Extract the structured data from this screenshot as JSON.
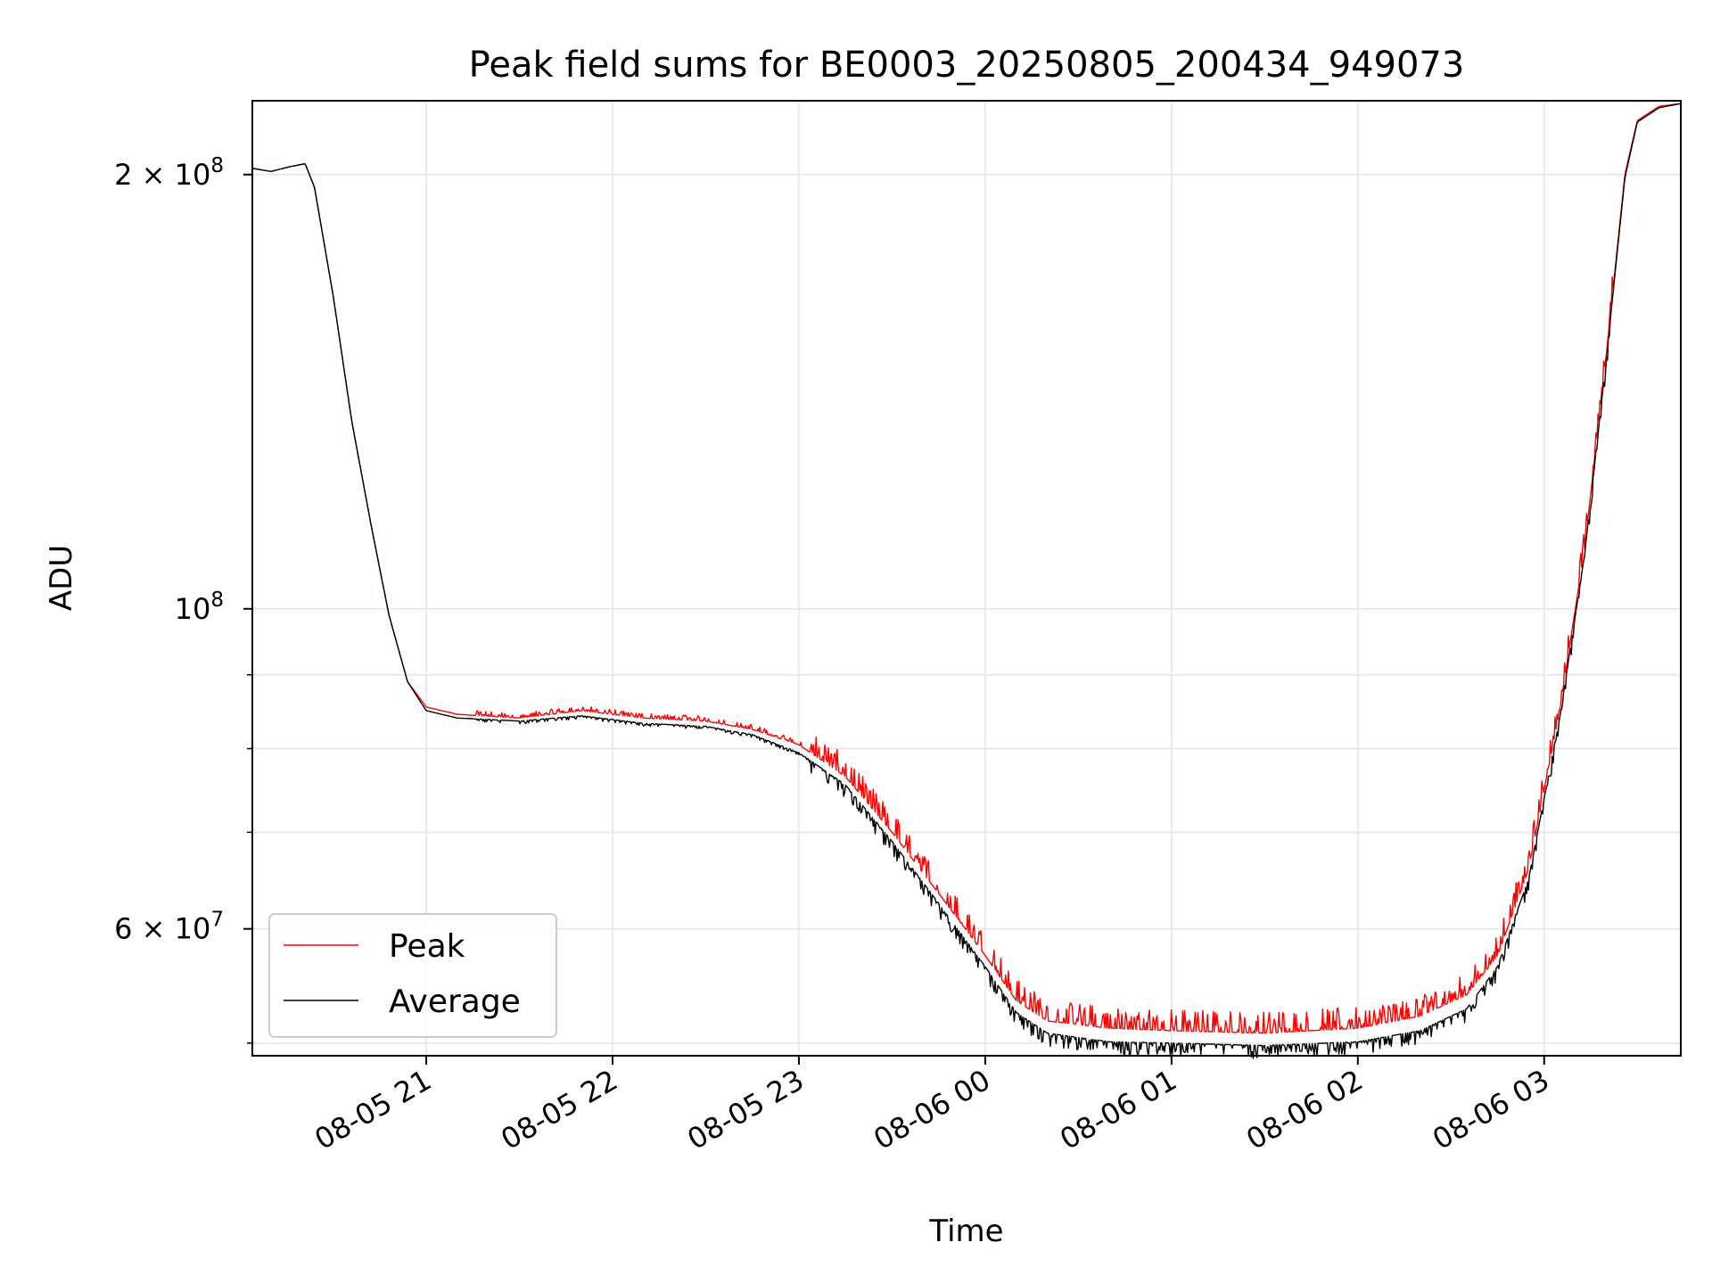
{
  "chart_data": {
    "type": "line",
    "title": "Peak field sums for BE0003_20250805_200434_949073",
    "xlabel": "Time",
    "ylabel": "ADU",
    "yscale": "log",
    "ylim": [
      49000000,
      225000000
    ],
    "xlim": [
      "2025-08-05 20:04",
      "2025-08-06 03:44"
    ],
    "grid": true,
    "legend_position": "lower-left",
    "x_ticks": [
      {
        "t": "2025-08-05 21:00",
        "label": "08-05 21"
      },
      {
        "t": "2025-08-05 22:00",
        "label": "08-05 22"
      },
      {
        "t": "2025-08-05 23:00",
        "label": "08-05 23"
      },
      {
        "t": "2025-08-06 00:00",
        "label": "08-06 00"
      },
      {
        "t": "2025-08-06 01:00",
        "label": "08-06 01"
      },
      {
        "t": "2025-08-06 02:00",
        "label": "08-06 02"
      },
      {
        "t": "2025-08-06 03:00",
        "label": "08-06 03"
      }
    ],
    "y_ticks": [
      {
        "value": 200000000,
        "base": "2 × 10",
        "exp": "8"
      },
      {
        "value": 100000000,
        "base": "10",
        "exp": "8"
      },
      {
        "value": 60000000,
        "base": "6 × 10",
        "exp": "7"
      }
    ],
    "y_minor_ticks": [
      50000000,
      70000000,
      80000000,
      90000000
    ],
    "series": [
      {
        "name": "Peak",
        "color": "#ff0000",
        "noise": "spikes",
        "points": [
          [
            "2025-08-05 20:04",
            202000000
          ],
          [
            "2025-08-05 20:10",
            201000000
          ],
          [
            "2025-08-05 20:16",
            202500000
          ],
          [
            "2025-08-05 20:21",
            203500000
          ],
          [
            "2025-08-05 20:24",
            196000000
          ],
          [
            "2025-08-05 20:30",
            165000000
          ],
          [
            "2025-08-05 20:36",
            135000000
          ],
          [
            "2025-08-05 20:42",
            115000000
          ],
          [
            "2025-08-05 20:48",
            99000000
          ],
          [
            "2025-08-05 20:54",
            89000000
          ],
          [
            "2025-08-05 21:00",
            85500000
          ],
          [
            "2025-08-05 21:10",
            84500000
          ],
          [
            "2025-08-05 21:30",
            84000000
          ],
          [
            "2025-08-05 21:50",
            85000000
          ],
          [
            "2025-08-05 22:10",
            84000000
          ],
          [
            "2025-08-05 22:30",
            83600000
          ],
          [
            "2025-08-05 22:45",
            82500000
          ],
          [
            "2025-08-05 23:00",
            80500000
          ],
          [
            "2025-08-05 23:15",
            76500000
          ],
          [
            "2025-08-05 23:30",
            70000000
          ],
          [
            "2025-08-05 23:45",
            63500000
          ],
          [
            "2025-08-06 00:00",
            57500000
          ],
          [
            "2025-08-06 00:10",
            53500000
          ],
          [
            "2025-08-06 00:20",
            51800000
          ],
          [
            "2025-08-06 00:40",
            51200000
          ],
          [
            "2025-08-06 01:00",
            51000000
          ],
          [
            "2025-08-06 01:30",
            50800000
          ],
          [
            "2025-08-06 02:00",
            51200000
          ],
          [
            "2025-08-06 02:20",
            52200000
          ],
          [
            "2025-08-06 02:35",
            54000000
          ],
          [
            "2025-08-06 02:45",
            57500000
          ],
          [
            "2025-08-06 02:55",
            66000000
          ],
          [
            "2025-08-06 03:05",
            85000000
          ],
          [
            "2025-08-06 03:13",
            110000000
          ],
          [
            "2025-08-06 03:20",
            150000000
          ],
          [
            "2025-08-06 03:26",
            200000000
          ],
          [
            "2025-08-06 03:30",
            218000000
          ],
          [
            "2025-08-06 03:37",
            223000000
          ],
          [
            "2025-08-06 03:44",
            224000000
          ]
        ]
      },
      {
        "name": "Average",
        "color": "#000000",
        "noise": "dips",
        "points": [
          [
            "2025-08-05 20:04",
            202000000
          ],
          [
            "2025-08-05 20:10",
            201000000
          ],
          [
            "2025-08-05 20:16",
            202500000
          ],
          [
            "2025-08-05 20:21",
            203500000
          ],
          [
            "2025-08-05 20:24",
            196000000
          ],
          [
            "2025-08-05 20:30",
            165000000
          ],
          [
            "2025-08-05 20:36",
            135000000
          ],
          [
            "2025-08-05 20:42",
            115000000
          ],
          [
            "2025-08-05 20:48",
            99000000
          ],
          [
            "2025-08-05 20:54",
            89000000
          ],
          [
            "2025-08-05 21:00",
            85000000
          ],
          [
            "2025-08-05 21:10",
            84000000
          ],
          [
            "2025-08-05 21:30",
            83600000
          ],
          [
            "2025-08-05 21:50",
            84300000
          ],
          [
            "2025-08-05 22:10",
            83300000
          ],
          [
            "2025-08-05 22:30",
            82900000
          ],
          [
            "2025-08-05 22:45",
            81800000
          ],
          [
            "2025-08-05 23:00",
            79500000
          ],
          [
            "2025-08-05 23:15",
            75500000
          ],
          [
            "2025-08-05 23:30",
            69000000
          ],
          [
            "2025-08-05 23:45",
            62500000
          ],
          [
            "2025-08-06 00:00",
            56500000
          ],
          [
            "2025-08-06 00:10",
            52500000
          ],
          [
            "2025-08-06 00:20",
            50800000
          ],
          [
            "2025-08-06 00:40",
            50100000
          ],
          [
            "2025-08-06 01:00",
            50000000
          ],
          [
            "2025-08-06 01:30",
            49800000
          ],
          [
            "2025-08-06 02:00",
            50100000
          ],
          [
            "2025-08-06 02:20",
            51000000
          ],
          [
            "2025-08-06 02:35",
            52800000
          ],
          [
            "2025-08-06 02:45",
            56500000
          ],
          [
            "2025-08-06 02:55",
            65000000
          ],
          [
            "2025-08-06 03:05",
            84000000
          ],
          [
            "2025-08-06 03:13",
            109000000
          ],
          [
            "2025-08-06 03:20",
            149000000
          ],
          [
            "2025-08-06 03:26",
            199000000
          ],
          [
            "2025-08-06 03:30",
            217500000
          ],
          [
            "2025-08-06 03:37",
            222500000
          ],
          [
            "2025-08-06 03:44",
            224000000
          ]
        ]
      }
    ]
  }
}
